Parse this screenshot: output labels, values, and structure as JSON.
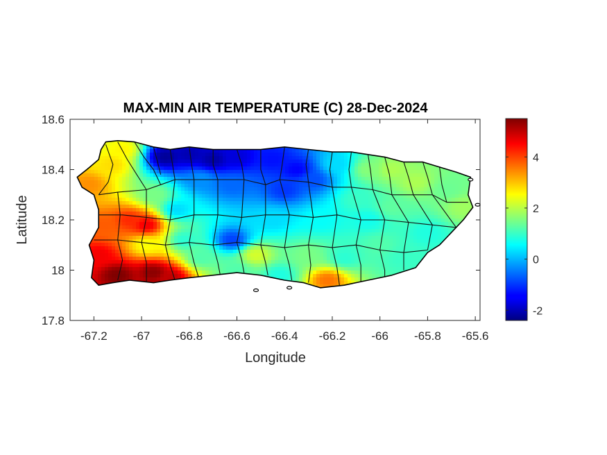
{
  "chart_data": {
    "type": "heatmap",
    "title": "MAX-MIN AIR TEMPERATURE (C) 28-Dec-2024",
    "xlabel": "Longitude",
    "ylabel": "Latitude",
    "xlim": [
      -67.3,
      -65.58
    ],
    "ylim": [
      17.8,
      18.6
    ],
    "xticks": [
      {
        "value": -67.2,
        "label": "-67.2"
      },
      {
        "value": -67.0,
        "label": "-67"
      },
      {
        "value": -66.8,
        "label": "-66.8"
      },
      {
        "value": -66.6,
        "label": "-66.6"
      },
      {
        "value": -66.4,
        "label": "-66.4"
      },
      {
        "value": -66.2,
        "label": "-66.2"
      },
      {
        "value": -66.0,
        "label": "-66"
      },
      {
        "value": -65.8,
        "label": "-65.8"
      },
      {
        "value": -65.6,
        "label": "-65.6"
      }
    ],
    "yticks": [
      {
        "value": 17.8,
        "label": "17.8"
      },
      {
        "value": 18.0,
        "label": "18"
      },
      {
        "value": 18.2,
        "label": "18.2"
      },
      {
        "value": 18.4,
        "label": "18.4"
      },
      {
        "value": 18.6,
        "label": "18.6"
      }
    ],
    "colorbar": {
      "colormap": "jet",
      "range": [
        -2.4,
        5.5
      ],
      "ticks": [
        {
          "value": -2,
          "label": "-2"
        },
        {
          "value": 0,
          "label": "0"
        },
        {
          "value": 2,
          "label": "2"
        },
        {
          "value": 4,
          "label": "4"
        }
      ]
    },
    "grid": false,
    "field": [
      {
        "lon": -67.1,
        "lat": 17.98,
        "value": 5.5
      },
      {
        "lon": -66.95,
        "lat": 17.99,
        "value": 5.4
      },
      {
        "lon": -66.88,
        "lat": 17.97,
        "value": 5.0
      },
      {
        "lon": -67.18,
        "lat": 18.06,
        "value": 4.6
      },
      {
        "lon": -67.05,
        "lat": 18.2,
        "value": 4.2
      },
      {
        "lon": -66.98,
        "lat": 18.18,
        "value": 4.6
      },
      {
        "lon": -67.16,
        "lat": 18.18,
        "value": 3.8
      },
      {
        "lon": -67.22,
        "lat": 18.34,
        "value": 3.4
      },
      {
        "lon": -67.12,
        "lat": 18.42,
        "value": 2.8
      },
      {
        "lon": -67.08,
        "lat": 18.48,
        "value": 2.6
      },
      {
        "lon": -66.95,
        "lat": 18.3,
        "value": 1.5
      },
      {
        "lon": -66.9,
        "lat": 18.45,
        "value": -2.2
      },
      {
        "lon": -66.8,
        "lat": 18.46,
        "value": -2.0
      },
      {
        "lon": -66.7,
        "lat": 18.44,
        "value": -2.1
      },
      {
        "lon": -66.6,
        "lat": 18.45,
        "value": -1.7
      },
      {
        "lon": -66.45,
        "lat": 18.44,
        "value": -1.3
      },
      {
        "lon": -66.35,
        "lat": 18.4,
        "value": -1.4
      },
      {
        "lon": -66.28,
        "lat": 18.36,
        "value": -0.8
      },
      {
        "lon": -66.4,
        "lat": 18.32,
        "value": -1.0
      },
      {
        "lon": -66.75,
        "lat": 18.36,
        "value": -0.3
      },
      {
        "lon": -66.62,
        "lat": 18.34,
        "value": -0.6
      },
      {
        "lon": -66.85,
        "lat": 18.24,
        "value": 0.3
      },
      {
        "lon": -66.62,
        "lat": 18.12,
        "value": -0.9
      },
      {
        "lon": -66.52,
        "lat": 18.06,
        "value": 2.2
      },
      {
        "lon": -66.3,
        "lat": 18.06,
        "value": 1.5
      },
      {
        "lon": -66.22,
        "lat": 17.96,
        "value": 3.6
      },
      {
        "lon": -66.42,
        "lat": 17.98,
        "value": 0.8
      },
      {
        "lon": -66.6,
        "lat": 18.0,
        "value": 1.2
      },
      {
        "lon": -66.75,
        "lat": 18.05,
        "value": 1.2
      },
      {
        "lon": -66.45,
        "lat": 18.2,
        "value": 0.3
      },
      {
        "lon": -66.25,
        "lat": 18.2,
        "value": 0.6
      },
      {
        "lon": -66.1,
        "lat": 18.28,
        "value": 1.0
      },
      {
        "lon": -66.05,
        "lat": 18.4,
        "value": 1.6
      },
      {
        "lon": -65.95,
        "lat": 18.4,
        "value": 1.9
      },
      {
        "lon": -65.85,
        "lat": 18.35,
        "value": 1.9
      },
      {
        "lon": -65.72,
        "lat": 18.32,
        "value": 1.4
      },
      {
        "lon": -65.65,
        "lat": 18.25,
        "value": 1.8
      },
      {
        "lon": -65.8,
        "lat": 18.15,
        "value": 0.8
      },
      {
        "lon": -65.9,
        "lat": 18.05,
        "value": 1.0
      },
      {
        "lon": -66.0,
        "lat": 18.1,
        "value": 1.2
      },
      {
        "lon": -66.15,
        "lat": 18.05,
        "value": 0.9
      },
      {
        "lon": -66.05,
        "lat": 18.2,
        "value": 0.7
      },
      {
        "lon": -65.95,
        "lat": 18.25,
        "value": 1.3
      },
      {
        "lon": -66.18,
        "lat": 18.42,
        "value": 0.3
      },
      {
        "lon": -66.98,
        "lat": 18.1,
        "value": 2.5
      },
      {
        "lon": -66.82,
        "lat": 18.12,
        "value": 0.9
      }
    ]
  }
}
